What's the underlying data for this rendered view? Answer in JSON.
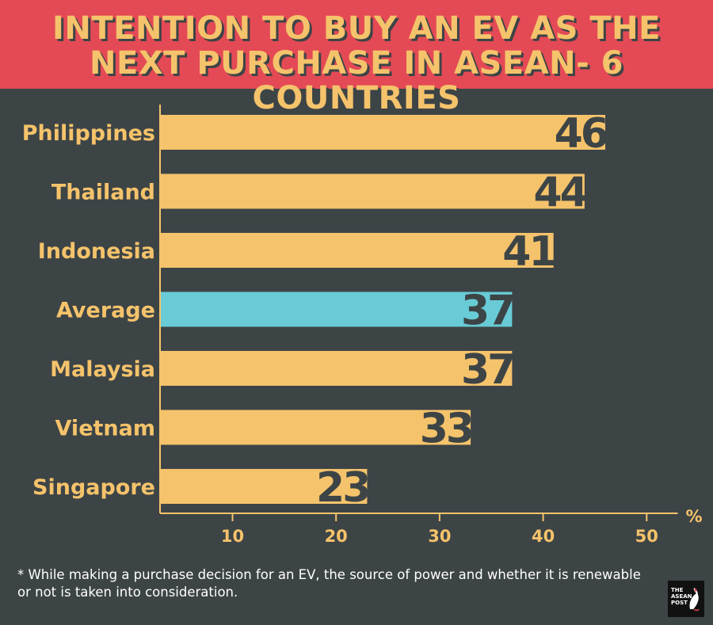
{
  "header": {
    "title": "INTENTION TO BUY AN EV AS THE NEXT PURCHASE IN ASEAN- 6 COUNTRIES",
    "background_color": "#e44a55",
    "title_color": "#f5c36b"
  },
  "chart_data": {
    "type": "bar",
    "orientation": "horizontal",
    "title": "INTENTION TO BUY AN EV AS THE NEXT PURCHASE IN ASEAN- 6 COUNTRIES",
    "categories": [
      "Philippines",
      "Thailand",
      "Indonesia",
      "Average",
      "Malaysia",
      "Vietnam",
      "Singapore"
    ],
    "values": [
      46,
      44,
      41,
      37,
      37,
      33,
      23
    ],
    "highlight_category": "Average",
    "xlabel": "%",
    "ylabel": "",
    "xticks": [
      10,
      20,
      30,
      40,
      50
    ],
    "xlim": [
      3,
      53
    ],
    "grid": false,
    "bar_color": "#f5c36b",
    "highlight_color": "#68cbd6",
    "background_color": "#3d4446"
  },
  "footnote": "* While making a purchase decision for an EV, the source of power and whether it is renewable or not is taken into consideration.",
  "logo": {
    "line1": "THE",
    "line2": "ASEAN",
    "line3": "POST",
    "icon": "bird-icon"
  }
}
